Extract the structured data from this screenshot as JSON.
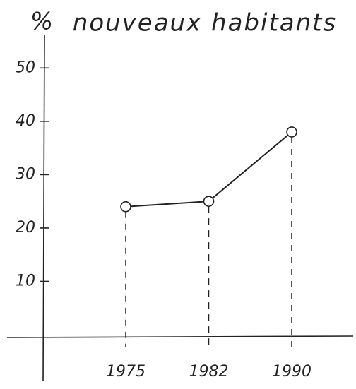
{
  "chart_data": {
    "type": "line",
    "title": "nouveaux habitants",
    "y_label": "%",
    "categories": [
      "1975",
      "1982",
      "1990"
    ],
    "values": [
      24,
      25,
      38
    ],
    "color": "#222222",
    "ylim": [
      0,
      56
    ],
    "yticks": [
      10,
      20,
      30,
      40,
      50
    ],
    "yticks_labels_note_free": null
  }
}
